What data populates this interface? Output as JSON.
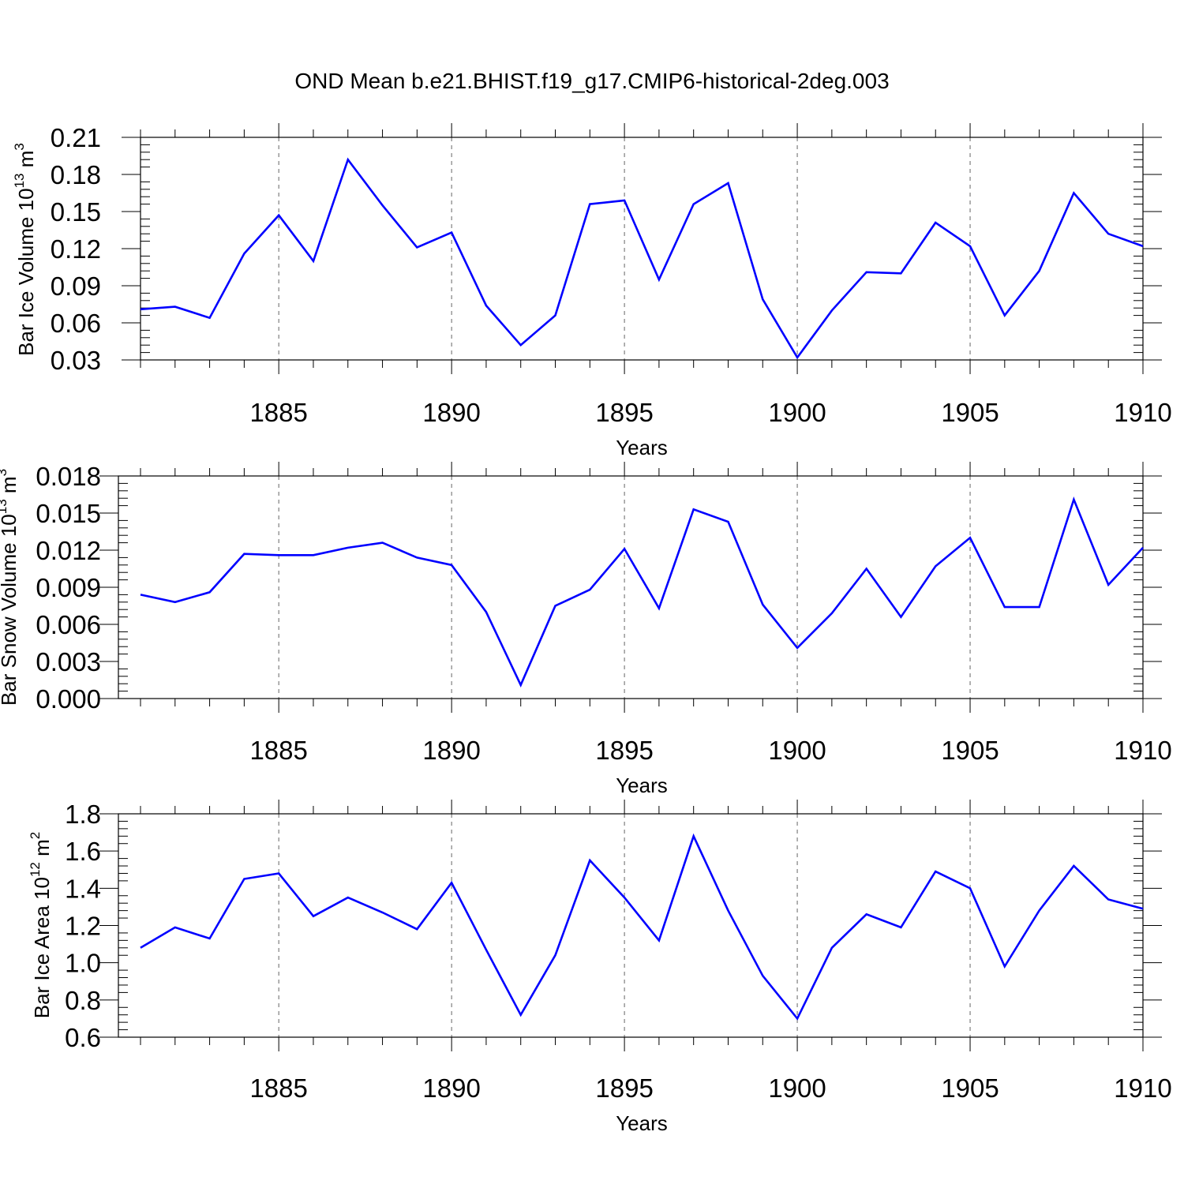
{
  "title": "OND Mean b.e21.BHIST.f19_g17.CMIP6-historical-2deg.003",
  "colors": {
    "line": "#0000ff",
    "axis": "#000000",
    "grid": "#000000"
  },
  "chart_data": [
    {
      "type": "line",
      "ylabel": "Bar Ice Volume 10",
      "ylabel_exp": "13",
      "ylabel_unit": " m",
      "ylabel_unit_exp": "3",
      "xlabel": "Years",
      "xlim": [
        1881,
        1910
      ],
      "ylim": [
        0.03,
        0.21
      ],
      "yticks": [
        0.03,
        0.06,
        0.09,
        0.12,
        0.15,
        0.18,
        0.21
      ],
      "ytick_labels": [
        "0.03",
        "0.06",
        "0.09",
        "0.12",
        "0.15",
        "0.18",
        "0.21"
      ],
      "xticks": [
        1885,
        1890,
        1895,
        1900,
        1905,
        1910
      ],
      "xtick_labels": [
        "1885",
        "1890",
        "1895",
        "1900",
        "1905",
        "1910"
      ],
      "grid": "vertical-dashed",
      "x": [
        1881,
        1882,
        1883,
        1884,
        1885,
        1886,
        1887,
        1888,
        1889,
        1890,
        1891,
        1892,
        1893,
        1894,
        1895,
        1896,
        1897,
        1898,
        1899,
        1900,
        1901,
        1902,
        1903,
        1904,
        1905,
        1906,
        1907,
        1908,
        1909,
        1910
      ],
      "values": [
        0.071,
        0.073,
        0.064,
        0.116,
        0.147,
        0.11,
        0.192,
        0.155,
        0.121,
        0.133,
        0.074,
        0.042,
        0.066,
        0.156,
        0.159,
        0.095,
        0.156,
        0.173,
        0.079,
        0.032,
        0.07,
        0.101,
        0.1,
        0.141,
        0.122,
        0.066,
        0.102,
        0.165,
        0.132,
        0.122
      ]
    },
    {
      "type": "line",
      "ylabel": "Bar Snow Volume 10",
      "ylabel_exp": "13",
      "ylabel_unit": " m",
      "ylabel_unit_exp": "3",
      "xlabel": "Years",
      "xlim": [
        1881,
        1910
      ],
      "ylim": [
        0.0,
        0.018
      ],
      "yticks": [
        0.0,
        0.003,
        0.006,
        0.009,
        0.012,
        0.015,
        0.018
      ],
      "ytick_labels": [
        "0.000",
        "0.003",
        "0.006",
        "0.009",
        "0.012",
        "0.015",
        "0.018"
      ],
      "xticks": [
        1885,
        1890,
        1895,
        1900,
        1905,
        1910
      ],
      "xtick_labels": [
        "1885",
        "1890",
        "1895",
        "1900",
        "1905",
        "1910"
      ],
      "grid": "vertical-dashed",
      "x": [
        1881,
        1882,
        1883,
        1884,
        1885,
        1886,
        1887,
        1888,
        1889,
        1890,
        1891,
        1892,
        1893,
        1894,
        1895,
        1896,
        1897,
        1898,
        1899,
        1900,
        1901,
        1902,
        1903,
        1904,
        1905,
        1906,
        1907,
        1908,
        1909,
        1910
      ],
      "values": [
        0.0084,
        0.0078,
        0.0086,
        0.0117,
        0.0116,
        0.0116,
        0.0122,
        0.0126,
        0.0114,
        0.0108,
        0.007,
        0.0011,
        0.0075,
        0.0088,
        0.0121,
        0.0073,
        0.0153,
        0.0143,
        0.0076,
        0.0041,
        0.0069,
        0.0105,
        0.0066,
        0.0107,
        0.013,
        0.0074,
        0.0074,
        0.0161,
        0.0092,
        0.0122
      ]
    },
    {
      "type": "line",
      "ylabel": "Bar Ice Area 10",
      "ylabel_exp": "12",
      "ylabel_unit": " m",
      "ylabel_unit_exp": "2",
      "xlabel": "Years",
      "xlim": [
        1881,
        1910
      ],
      "ylim": [
        0.6,
        1.8
      ],
      "yticks": [
        0.6,
        0.8,
        1.0,
        1.2,
        1.4,
        1.6,
        1.8
      ],
      "ytick_labels": [
        "0.6",
        "0.8",
        "1.0",
        "1.2",
        "1.4",
        "1.6",
        "1.8"
      ],
      "xticks": [
        1885,
        1890,
        1895,
        1900,
        1905,
        1910
      ],
      "xtick_labels": [
        "1885",
        "1890",
        "1895",
        "1900",
        "1905",
        "1910"
      ],
      "grid": "vertical-dashed",
      "x": [
        1881,
        1882,
        1883,
        1884,
        1885,
        1886,
        1887,
        1888,
        1889,
        1890,
        1891,
        1892,
        1893,
        1894,
        1895,
        1896,
        1897,
        1898,
        1899,
        1900,
        1901,
        1902,
        1903,
        1904,
        1905,
        1906,
        1907,
        1908,
        1909,
        1910
      ],
      "values": [
        1.08,
        1.19,
        1.13,
        1.45,
        1.48,
        1.25,
        1.35,
        1.27,
        1.18,
        1.43,
        1.07,
        0.72,
        1.04,
        1.55,
        1.35,
        1.12,
        1.68,
        1.28,
        0.93,
        0.7,
        1.08,
        1.26,
        1.19,
        1.49,
        1.4,
        0.98,
        1.28,
        1.52,
        1.34,
        1.29
      ]
    }
  ]
}
